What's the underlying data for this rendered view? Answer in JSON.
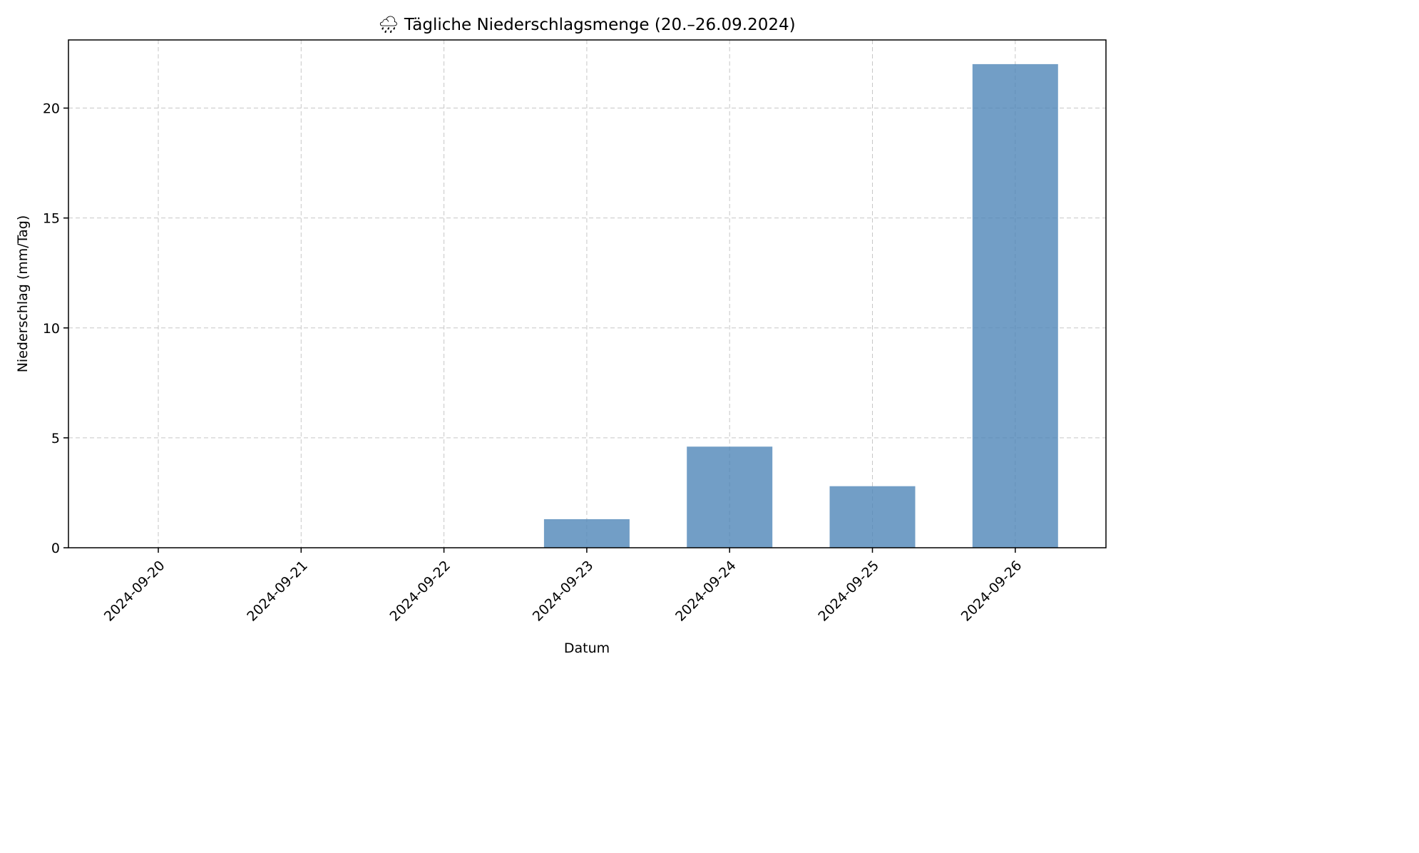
{
  "chart_data": {
    "type": "bar",
    "title": "🌧 Tägliche Niederschlagsmenge (20.–26.09.2024)",
    "xlabel": "Datum",
    "ylabel": "Niederschlag (mm/Tag)",
    "categories": [
      "2024-09-20",
      "2024-09-21",
      "2024-09-22",
      "2024-09-23",
      "2024-09-24",
      "2024-09-25",
      "2024-09-26"
    ],
    "values": [
      0,
      0,
      0,
      1.3,
      4.6,
      2.8,
      22.0
    ],
    "ylim": [
      0,
      23.1
    ],
    "yticks": [
      0,
      5,
      10,
      15,
      20
    ],
    "grid": true,
    "bar_color": "#4f86b8"
  }
}
